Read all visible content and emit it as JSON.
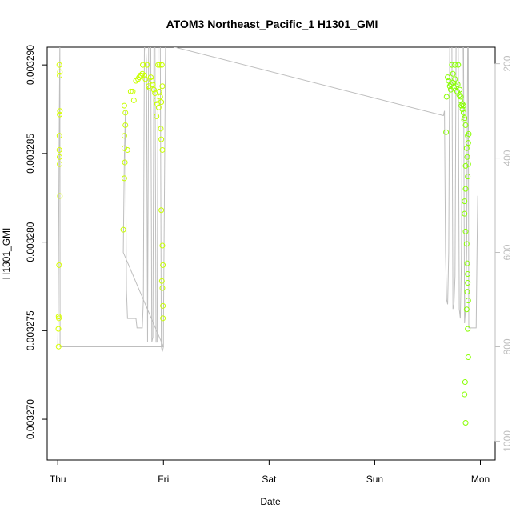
{
  "chart_data": {
    "type": "scatter",
    "title": "ATOM3 Northeast_Pacific_1 H1301_GMI",
    "xlabel": "Date",
    "ylabel": "H1301_GMI",
    "x_ticks": [
      {
        "day": 0,
        "label": "Thu"
      },
      {
        "day": 1,
        "label": "Fri"
      },
      {
        "day": 2,
        "label": "Sat"
      },
      {
        "day": 3,
        "label": "Sun"
      },
      {
        "day": 4,
        "label": "Mon"
      }
    ],
    "y_ticks": [
      0.00327,
      0.003275,
      0.00328,
      0.003285,
      0.00329
    ],
    "y_tick_labels": [
      "0.003270",
      "0.003275",
      "0.003280",
      "0.003285",
      "0.003290"
    ],
    "y2_ticks": [
      200,
      400,
      600,
      800,
      1000
    ],
    "y2_tick_labels": [
      "200",
      "400",
      "600",
      "800",
      "1000"
    ],
    "xlim": [
      -0.1,
      4.14
    ],
    "ylim": [
      0.0032677,
      0.003291
    ],
    "y2lim": [
      1040,
      165
    ],
    "grid": false,
    "point_colors": {
      "thu": "#d8ff00",
      "fri": "#c8ff00",
      "mon": "#88ff00"
    },
    "line_color": "#bebebe",
    "series": [
      {
        "role": "concentration",
        "groups": [
          {
            "color_key": "thu",
            "points": [
              [
                0.015,
                0.00329
              ],
              [
                0.02,
                0.0032896
              ],
              [
                0.018,
                0.0032894
              ],
              [
                0.02,
                0.0032874
              ],
              [
                0.018,
                0.0032872
              ],
              [
                0.016,
                0.003286
              ],
              [
                0.015,
                0.0032852
              ],
              [
                0.017,
                0.0032848
              ],
              [
                0.018,
                0.0032844
              ],
              [
                0.02,
                0.0032826
              ],
              [
                0.012,
                0.0032787
              ],
              [
                0.008,
                0.0032758
              ],
              [
                0.01,
                0.0032757
              ],
              [
                0.006,
                0.0032751
              ],
              [
                0.008,
                0.0032741
              ]
            ]
          },
          {
            "color_key": "fri",
            "points": [
              [
                0.63,
                0.0032877
              ],
              [
                0.64,
                0.0032873
              ],
              [
                0.64,
                0.0032866
              ],
              [
                0.63,
                0.003286
              ],
              [
                0.63,
                0.0032853
              ],
              [
                0.66,
                0.0032852
              ],
              [
                0.635,
                0.0032845
              ],
              [
                0.63,
                0.0032836
              ],
              [
                0.62,
                0.0032807
              ],
              [
                0.69,
                0.0032885
              ],
              [
                0.71,
                0.0032885
              ],
              [
                0.72,
                0.003288
              ],
              [
                0.74,
                0.0032891
              ],
              [
                0.76,
                0.0032892
              ],
              [
                0.77,
                0.0032893
              ],
              [
                0.78,
                0.0032894
              ],
              [
                0.79,
                0.0032894
              ],
              [
                0.8,
                0.0032895
              ],
              [
                0.82,
                0.0032894
              ],
              [
                0.83,
                0.0032892
              ],
              [
                0.805,
                0.00329
              ],
              [
                0.845,
                0.00329
              ],
              [
                0.86,
                0.0032888
              ],
              [
                0.87,
                0.0032887
              ],
              [
                0.88,
                0.0032893
              ],
              [
                0.89,
                0.0032891
              ],
              [
                0.9,
                0.0032889
              ],
              [
                0.91,
                0.0032886
              ],
              [
                0.92,
                0.0032884
              ],
              [
                0.93,
                0.003288
              ],
              [
                0.94,
                0.0032878
              ],
              [
                0.95,
                0.00329
              ],
              [
                0.96,
                0.0032885
              ],
              [
                0.97,
                0.0032882
              ],
              [
                0.98,
                0.0032879
              ],
              [
                0.99,
                0.0032888
              ],
              [
                0.965,
                0.00329
              ],
              [
                0.985,
                0.00329
              ],
              [
                0.935,
                0.0032871
              ],
              [
                0.955,
                0.0032876
              ],
              [
                0.975,
                0.0032864
              ],
              [
                0.98,
                0.0032858
              ],
              [
                0.99,
                0.0032852
              ],
              [
                0.98,
                0.0032818
              ],
              [
                0.99,
                0.0032798
              ],
              [
                0.995,
                0.0032787
              ],
              [
                0.985,
                0.0032778
              ],
              [
                0.99,
                0.0032774
              ],
              [
                0.995,
                0.0032764
              ],
              [
                0.995,
                0.0032757
              ]
            ]
          },
          {
            "color_key": "mon",
            "points": [
              [
                3.68,
                0.0032882
              ],
              [
                3.69,
                0.0032893
              ],
              [
                3.7,
                0.0032891
              ],
              [
                3.71,
                0.0032888
              ],
              [
                3.72,
                0.0032886
              ],
              [
                3.73,
                0.00329
              ],
              [
                3.74,
                0.003289
              ],
              [
                3.75,
                0.0032887
              ],
              [
                3.76,
                0.0032892
              ],
              [
                3.77,
                0.0032888
              ],
              [
                3.78,
                0.0032885
              ],
              [
                3.79,
                0.00329
              ],
              [
                3.8,
                0.0032883
              ],
              [
                3.81,
                0.003288
              ],
              [
                3.82,
                0.0032877
              ],
              [
                3.83,
                0.0032875
              ],
              [
                3.84,
                0.0032873
              ],
              [
                3.845,
                0.0032869
              ],
              [
                3.72,
                0.0032889
              ],
              [
                3.74,
                0.0032895
              ],
              [
                3.76,
                0.00329
              ],
              [
                3.785,
                0.0032889
              ],
              [
                3.805,
                0.0032886
              ],
              [
                3.815,
                0.0032882
              ],
              [
                3.83,
                0.0032878
              ],
              [
                3.84,
                0.0032877
              ],
              [
                3.85,
                0.003287
              ],
              [
                3.675,
                0.0032862
              ],
              [
                3.86,
                0.0032866
              ],
              [
                3.88,
                0.003286
              ],
              [
                3.885,
                0.0032856
              ],
              [
                3.87,
                0.0032853
              ],
              [
                3.875,
                0.0032848
              ],
              [
                3.86,
                0.0032843
              ],
              [
                3.88,
                0.0032837
              ],
              [
                3.86,
                0.003283
              ],
              [
                3.85,
                0.0032823
              ],
              [
                3.85,
                0.0032816
              ],
              [
                3.86,
                0.0032806
              ],
              [
                3.87,
                0.0032799
              ],
              [
                3.875,
                0.0032788
              ],
              [
                3.88,
                0.0032782
              ],
              [
                3.88,
                0.0032777
              ],
              [
                3.875,
                0.0032772
              ],
              [
                3.885,
                0.0032767
              ],
              [
                3.87,
                0.0032762
              ],
              [
                3.88,
                0.0032751
              ],
              [
                3.89,
                0.0032861
              ],
              [
                3.885,
                0.0032844
              ],
              [
                3.885,
                0.0032735
              ],
              [
                3.855,
                0.0032721
              ],
              [
                3.85,
                0.0032714
              ],
              [
                3.86,
                0.0032698
              ]
            ]
          }
        ]
      },
      {
        "role": "pressure",
        "axis": "y2",
        "points": [
          [
            0.0,
            800
          ],
          [
            0.005,
            720
          ],
          [
            0.01,
            500
          ],
          [
            0.015,
            300
          ],
          [
            0.02,
            150
          ],
          [
            0.022,
            800
          ],
          [
            0.5,
            800
          ],
          [
            1.0,
            800
          ],
          [
            0.62,
            600
          ],
          [
            0.63,
            400
          ],
          [
            0.64,
            300
          ],
          [
            0.65,
            680
          ],
          [
            0.66,
            740
          ],
          [
            0.7,
            740
          ],
          [
            0.74,
            740
          ],
          [
            0.75,
            760
          ],
          [
            0.8,
            760
          ],
          [
            0.81,
            700
          ],
          [
            0.82,
            150
          ],
          [
            0.83,
            150
          ],
          [
            0.84,
            200
          ],
          [
            0.85,
            790
          ],
          [
            0.86,
            150
          ],
          [
            0.87,
            150
          ],
          [
            0.88,
            150
          ],
          [
            0.89,
            790
          ],
          [
            0.9,
            780
          ],
          [
            0.91,
            160
          ],
          [
            0.92,
            150
          ],
          [
            0.93,
            790
          ],
          [
            0.94,
            790
          ],
          [
            0.95,
            150
          ],
          [
            0.96,
            150
          ],
          [
            0.97,
            150
          ],
          [
            0.98,
            800
          ],
          [
            0.99,
            810
          ],
          [
            1.0,
            800
          ],
          [
            1.0,
            780
          ],
          [
            1.0,
            760
          ],
          [
            1.02,
            160
          ],
          [
            3.65,
            310
          ],
          [
            3.66,
            300
          ],
          [
            3.67,
            600
          ],
          [
            3.68,
            700
          ],
          [
            3.69,
            710
          ],
          [
            3.7,
            600
          ],
          [
            3.71,
            150
          ],
          [
            3.73,
            150
          ],
          [
            3.74,
            720
          ],
          [
            3.75,
            710
          ],
          [
            3.76,
            650
          ],
          [
            3.77,
            150
          ],
          [
            3.79,
            150
          ],
          [
            3.8,
            720
          ],
          [
            3.81,
            740
          ],
          [
            3.82,
            620
          ],
          [
            3.83,
            150
          ],
          [
            3.84,
            150
          ],
          [
            3.85,
            750
          ],
          [
            3.86,
            720
          ],
          [
            3.87,
            600
          ],
          [
            3.88,
            150
          ],
          [
            3.885,
            150
          ],
          [
            3.89,
            760
          ],
          [
            3.9,
            760
          ],
          [
            3.95,
            760
          ],
          [
            3.96,
            760
          ],
          [
            3.97,
            560
          ],
          [
            3.975,
            480
          ]
        ]
      }
    ]
  }
}
